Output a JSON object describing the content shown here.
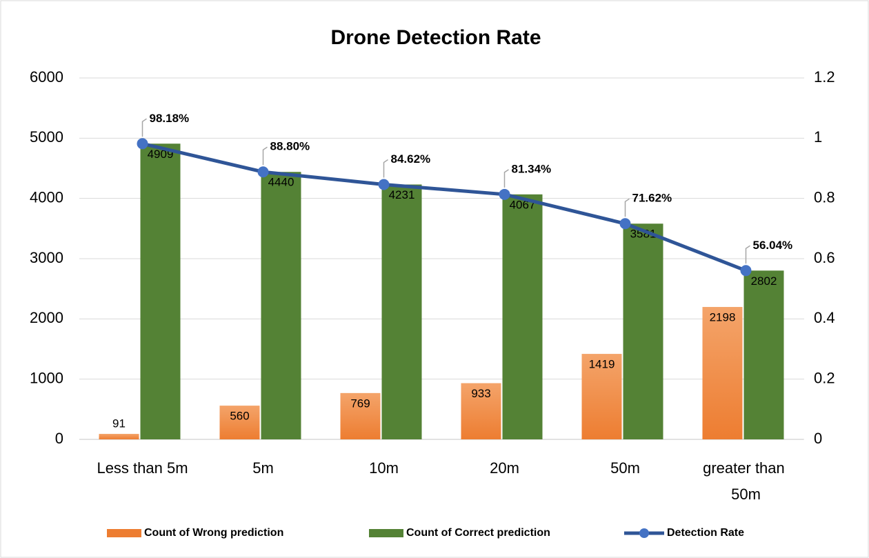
{
  "chart_data": {
    "type": "bar",
    "title": "Drone Detection Rate",
    "categories": [
      "Less than 5m",
      "5m",
      "10m",
      "20m",
      "50m",
      "greater than 50m"
    ],
    "series": [
      {
        "name": "Count of Wrong prediction",
        "color": "#ed7d31",
        "values": [
          91,
          560,
          769,
          933,
          1419,
          2198
        ]
      },
      {
        "name": "Count of Correct prediction",
        "color": "#548235",
        "values": [
          4909,
          4440,
          4231,
          4067,
          3581,
          2802
        ]
      },
      {
        "name": "Detection Rate",
        "type": "line",
        "axis": "y2",
        "color": "#2f5597",
        "marker_color": "#4472c4",
        "values": [
          0.9818,
          0.888,
          0.8462,
          0.8134,
          0.7162,
          0.5604
        ],
        "value_labels": [
          "98.18%",
          "88.80%",
          "84.62%",
          "81.34%",
          "71.62%",
          "56.04%"
        ]
      }
    ],
    "ylim": [
      0,
      6000
    ],
    "yticks": [
      0,
      1000,
      2000,
      3000,
      4000,
      5000,
      6000
    ],
    "y2lim": [
      0,
      1.2
    ],
    "y2ticks": [
      0,
      0.2,
      0.4,
      0.6,
      0.8,
      1,
      1.2
    ],
    "grid": true,
    "legend": "bottom"
  }
}
